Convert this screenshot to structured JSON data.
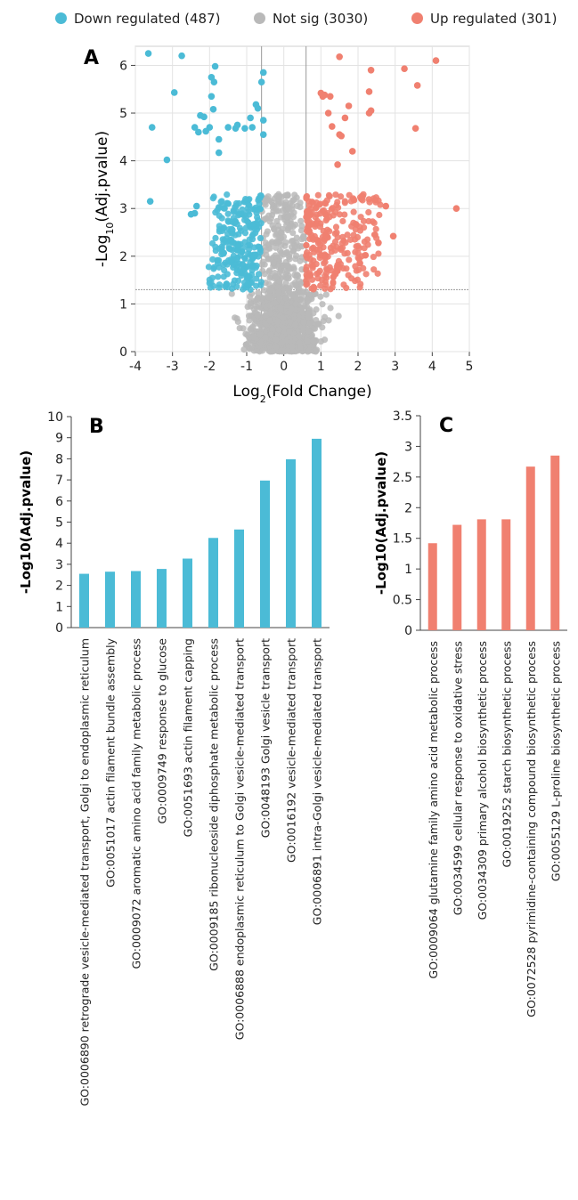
{
  "legend": [
    {
      "label": "Down regulated (487)",
      "color": "#4bbbd6"
    },
    {
      "label": "Not sig (3030)",
      "color": "#b9b9b9"
    },
    {
      "label": "Up regulated (301)",
      "color": "#f08070"
    }
  ],
  "chart_data": [
    {
      "panel": "A",
      "type": "scatter",
      "xlabel": "Log2(Fold Change)",
      "ylabel": "-Log10(Adj.pvalue)",
      "xlim": [
        -4,
        5
      ],
      "ylim": [
        0,
        6.4
      ],
      "xticks": [
        -4,
        -3,
        -2,
        -1,
        0,
        1,
        2,
        3,
        4,
        5
      ],
      "yticks": [
        0,
        1,
        2,
        3,
        4,
        5,
        6
      ],
      "thresholds": {
        "x": [
          -0.6,
          0.6
        ],
        "y": 1.3
      },
      "grid": true,
      "legend_position": "top",
      "series": [
        {
          "name": "Down regulated (487)",
          "color": "#4bbbd6",
          "points": [
            [
              -3.65,
              6.25
            ],
            [
              -2.75,
              6.2
            ],
            [
              -1.85,
              5.98
            ],
            [
              -0.55,
              5.85
            ],
            [
              -1.95,
              5.75
            ],
            [
              -1.88,
              5.65
            ],
            [
              -0.6,
              5.65
            ],
            [
              -2.95,
              5.43
            ],
            [
              -1.95,
              5.35
            ],
            [
              -0.75,
              5.18
            ],
            [
              -0.7,
              5.1
            ],
            [
              -1.9,
              5.08
            ],
            [
              -2.25,
              4.95
            ],
            [
              -2.15,
              4.92
            ],
            [
              -0.9,
              4.9
            ],
            [
              -0.55,
              4.85
            ],
            [
              -2.4,
              4.7
            ],
            [
              -3.55,
              4.7
            ],
            [
              -2.0,
              4.7
            ],
            [
              -1.5,
              4.7
            ],
            [
              -1.3,
              4.68
            ],
            [
              -1.05,
              4.68
            ],
            [
              -0.85,
              4.7
            ],
            [
              -2.3,
              4.6
            ],
            [
              -2.1,
              4.62
            ],
            [
              -0.55,
              4.55
            ],
            [
              -1.75,
              4.45
            ],
            [
              -1.25,
              4.75
            ],
            [
              -1.75,
              4.17
            ],
            [
              -3.15,
              4.02
            ],
            [
              -3.6,
              3.15
            ],
            [
              -2.35,
              3.05
            ],
            [
              -2.5,
              2.88
            ],
            [
              -2.4,
              2.9
            ]
          ],
          "dense_region": {
            "x": [
              -2.1,
              -0.6
            ],
            "y": [
              1.3,
              3.3
            ],
            "count": 450
          }
        },
        {
          "name": "Not sig (3030)",
          "color": "#b9b9b9",
          "dense_region": {
            "x": [
              -1.6,
              1.6
            ],
            "y": [
              0.0,
              3.3
            ],
            "count": 3030
          }
        },
        {
          "name": "Up regulated (301)",
          "color": "#f08070",
          "points": [
            [
              4.1,
              6.1
            ],
            [
              1.5,
              6.18
            ],
            [
              3.25,
              5.93
            ],
            [
              2.35,
              5.9
            ],
            [
              3.6,
              5.58
            ],
            [
              2.3,
              5.45
            ],
            [
              1.0,
              5.42
            ],
            [
              1.1,
              5.38
            ],
            [
              1.25,
              5.35
            ],
            [
              1.05,
              5.35
            ],
            [
              1.75,
              5.15
            ],
            [
              2.35,
              5.05
            ],
            [
              2.3,
              5.0
            ],
            [
              1.2,
              5.0
            ],
            [
              1.65,
              4.9
            ],
            [
              3.55,
              4.68
            ],
            [
              1.3,
              4.72
            ],
            [
              1.5,
              4.55
            ],
            [
              1.55,
              4.52
            ],
            [
              1.85,
              4.2
            ],
            [
              1.45,
              3.92
            ],
            [
              2.75,
              3.05
            ],
            [
              4.65,
              3.0
            ],
            [
              2.95,
              2.42
            ],
            [
              2.55,
              2.28
            ],
            [
              2.2,
              2.02
            ],
            [
              2.05,
              1.85
            ]
          ],
          "dense_region": {
            "x": [
              0.6,
              2.6
            ],
            "y": [
              1.3,
              3.3
            ],
            "count": 274
          }
        }
      ]
    },
    {
      "panel": "B",
      "type": "bar",
      "ylabel": "-Log10(Adj.pvalue)",
      "ylim": [
        0,
        10
      ],
      "yticks": [
        0,
        1,
        2,
        3,
        4,
        5,
        6,
        7,
        8,
        9,
        10
      ],
      "color": "#4bbbd6",
      "categories": [
        "GO:0006890 retrograde vesicle-mediated transport, Golgi to endoplasmic reticulum",
        "GO:0051017 actin filament bundle assembly",
        "GO:0009072 aromatic amino acid family metabolic process",
        "GO:0009749 response to glucose",
        "GO:0051693 actin filament capping",
        "GO:0009185 ribonucleoside diphosphate metabolic process",
        "GO:0006888 endoplasmic reticulum to Golgi vesicle-mediated transport",
        "GO:0048193 Golgi vesicle transport",
        "GO:0016192 vesicle-mediated transport",
        "GO:0006891 intra-Golgi vesicle-mediated transport"
      ],
      "values": [
        2.55,
        2.65,
        2.68,
        2.78,
        3.27,
        4.25,
        4.65,
        6.97,
        7.98,
        8.95
      ]
    },
    {
      "panel": "C",
      "type": "bar",
      "ylabel": "-Log10(Adj.pvalue)",
      "ylim": [
        0,
        3.5
      ],
      "yticks": [
        0,
        0.5,
        1,
        1.5,
        2,
        2.5,
        3,
        3.5
      ],
      "color": "#f08070",
      "categories": [
        "GO:0009064 glutamine family amino acid metabolic process",
        "GO:0034599 cellular response to oxidative stress",
        "GO:0034309 primary alcohol biosynthetic process",
        "GO:0019252 starch biosynthetic process",
        "GO:0072528 pyrimidine-containing compound biosynthetic process",
        "GO:0055129 L-proline biosynthetic process"
      ],
      "values": [
        1.42,
        1.72,
        1.81,
        1.81,
        2.67,
        2.85
      ]
    }
  ]
}
